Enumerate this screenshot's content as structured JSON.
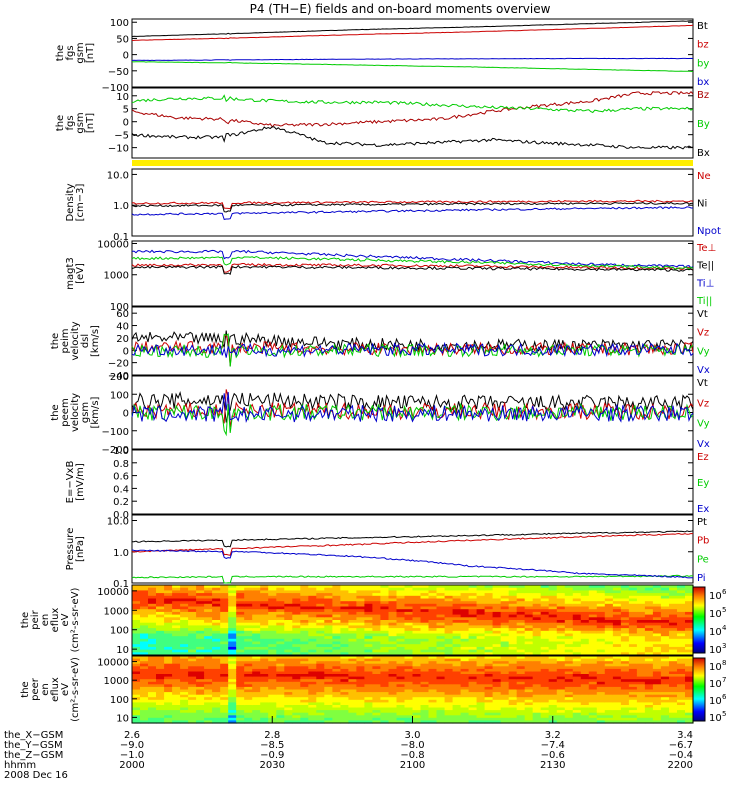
{
  "title": "P4 (TH−E) fields and on-board moments overview",
  "chart_data": {
    "type": "line",
    "title": "P4 (TH−E) fields and on-board moments overview",
    "panels": [
      {
        "id": "fgs-gsm-mag",
        "ylabel": [
          "the",
          "fgs",
          "gsm",
          "[nT]"
        ],
        "ylim": [
          -100,
          110
        ],
        "scale": "linear",
        "yticks": [
          100,
          50,
          0,
          -50,
          -100
        ],
        "yticklabels": [
          "100",
          "50",
          "0",
          "−50",
          "−100"
        ],
        "series": [
          {
            "name": "Bt",
            "color": "#000000",
            "x": [
              0,
              0.2,
              0.4,
              0.6,
              0.8,
              1
            ],
            "y": [
              56,
              66,
              77,
              85,
              95,
              104
            ]
          },
          {
            "name": "bz",
            "color": "#cc0000",
            "x": [
              0,
              0.2,
              0.4,
              0.6,
              0.8,
              1
            ],
            "y": [
              44,
              52,
              62,
              70,
              80,
              90
            ]
          },
          {
            "name": "by",
            "color": "#00cc00",
            "x": [
              0,
              0.2,
              0.4,
              0.6,
              0.8,
              1
            ],
            "y": [
              -22,
              -26,
              -32,
              -38,
              -45,
              -52
            ]
          },
          {
            "name": "bx",
            "color": "#0000cc",
            "x": [
              0,
              0.2,
              0.4,
              0.6,
              0.8,
              1
            ],
            "y": [
              -18,
              -16,
              -14,
              -13,
              -12,
              -12
            ]
          }
        ]
      },
      {
        "id": "fgs-gsm-comp",
        "ylabel": [
          "the",
          "fgs",
          "gsm",
          "[nT]"
        ],
        "ylim": [
          -14,
          13
        ],
        "scale": "linear",
        "yticks": [
          10,
          5,
          0,
          -5,
          -10
        ],
        "yticklabels": [
          "10",
          "5",
          "0",
          "−5",
          "−10"
        ],
        "series": [
          {
            "name": "Bz",
            "color": "#aa0000",
            "x": [
              0,
              0.08,
              0.16,
              0.25,
              0.34,
              0.44,
              0.55,
              0.64,
              0.72,
              0.82,
              0.9,
              1
            ],
            "y": [
              4,
              1.5,
              1,
              -1.5,
              -1,
              0,
              1,
              4,
              6,
              8,
              11,
              11
            ]
          },
          {
            "name": "By",
            "color": "#00cc00",
            "x": [
              0,
              0.08,
              0.16,
              0.25,
              0.34,
              0.44,
              0.55,
              0.64,
              0.72,
              0.82,
              0.9,
              1
            ],
            "y": [
              8,
              9,
              9,
              8,
              7.5,
              7.5,
              6.5,
              5.5,
              5,
              4,
              5,
              5
            ]
          },
          {
            "name": "Bx",
            "color": "#000000",
            "x": [
              0,
              0.08,
              0.16,
              0.25,
              0.3,
              0.34,
              0.44,
              0.55,
              0.64,
              0.72,
              0.82,
              0.9,
              1
            ],
            "y": [
              -5,
              -6,
              -6,
              -2,
              -5,
              -8,
              -9,
              -8,
              -7,
              -8,
              -9,
              -10,
              -10
            ]
          }
        ]
      },
      {
        "id": "density",
        "ylabel": [
          "Density",
          "[cm−3]"
        ],
        "ylim": [
          0.1,
          15
        ],
        "scale": "log",
        "yticks": [
          10,
          1,
          0.1
        ],
        "yticklabels": [
          "10.0",
          "1.0",
          "0.1"
        ],
        "series": [
          {
            "name": "Ne",
            "color": "#cc0000",
            "x": [
              0,
              0.2,
              0.4,
              0.6,
              0.8,
              1
            ],
            "y": [
              1.15,
              1.2,
              1.25,
              1.3,
              1.35,
              1.35
            ]
          },
          {
            "name": "Ni",
            "color": "#000000",
            "x": [
              0,
              0.2,
              0.4,
              0.6,
              0.8,
              1
            ],
            "y": [
              0.95,
              1.0,
              1.05,
              1.1,
              1.15,
              1.15
            ]
          },
          {
            "name": "Npot",
            "color": "#0000cc",
            "x": [
              0,
              0.2,
              0.4,
              0.6,
              0.8,
              1
            ],
            "y": [
              0.5,
              0.55,
              0.62,
              0.7,
              0.78,
              0.85
            ]
          }
        ]
      },
      {
        "id": "temperature",
        "ylabel": [
          "magt3",
          "[eV]"
        ],
        "ylim": [
          100,
          12000
        ],
        "scale": "log",
        "yticks": [
          10000,
          1000,
          100
        ],
        "yticklabels": [
          "10000",
          "1000",
          "100"
        ],
        "series": [
          {
            "name": "Te⊥",
            "color": "#cc0000",
            "x": [
              0,
              0.2,
              0.4,
              0.6,
              0.8,
              1
            ],
            "y": [
              2000,
              2100,
              2000,
              1900,
              1700,
              1600
            ]
          },
          {
            "name": "Te||",
            "color": "#000000",
            "x": [
              0,
              0.2,
              0.4,
              0.6,
              0.8,
              1
            ],
            "y": [
              1700,
              1800,
              1700,
              1600,
              1500,
              1400
            ]
          },
          {
            "name": "Ti⊥",
            "color": "#0000cc",
            "x": [
              0,
              0.2,
              0.4,
              0.6,
              0.8,
              1
            ],
            "y": [
              5500,
              5500,
              4000,
              3000,
              2200,
              1800
            ]
          },
          {
            "name": "Ti||",
            "color": "#00cc00",
            "x": [
              0,
              0.2,
              0.4,
              0.6,
              0.8,
              1
            ],
            "y": [
              3300,
              3600,
              3000,
              2500,
              2000,
              1600
            ]
          }
        ]
      },
      {
        "id": "velocity-dsl",
        "ylabel": [
          "the",
          "peim",
          "velocity",
          "dsl",
          "[km/s]"
        ],
        "ylim": [
          -40,
          70
        ],
        "scale": "linear",
        "yticks": [
          60,
          40,
          20,
          0,
          -20,
          -40
        ],
        "yticklabels": [
          "60",
          "40",
          "20",
          "0",
          "−20",
          "−40"
        ],
        "series": [
          {
            "name": "Vt",
            "color": "#000000",
            "x": [
              0,
              0.2,
              0.4,
              0.6,
              0.8,
              1
            ],
            "y": [
              20,
              18,
              10,
              8,
              8,
              8
            ]
          },
          {
            "name": "Vz",
            "color": "#cc0000",
            "x": [
              0,
              0.2,
              0.4,
              0.6,
              0.8,
              1
            ],
            "y": [
              5,
              4,
              2,
              2,
              2,
              2
            ]
          },
          {
            "name": "Vy",
            "color": "#00cc00",
            "x": [
              0,
              0.2,
              0.4,
              0.6,
              0.8,
              1
            ],
            "y": [
              0,
              -2,
              0,
              0,
              0,
              0
            ]
          },
          {
            "name": "Vx",
            "color": "#0000cc",
            "x": [
              0,
              0.2,
              0.4,
              0.6,
              0.8,
              1
            ],
            "y": [
              2,
              0,
              1,
              1,
              1,
              1
            ]
          }
        ]
      },
      {
        "id": "velocity-gsm",
        "ylabel": [
          "the",
          "peem",
          "velocity",
          "gsm",
          "[km/s]"
        ],
        "ylim": [
          -200,
          200
        ],
        "scale": "linear",
        "yticks": [
          200,
          100,
          0,
          -100,
          -200
        ],
        "yticklabels": [
          "200",
          "100",
          "0",
          "−100",
          "−200"
        ],
        "series": [
          {
            "name": "Vt",
            "color": "#000000",
            "x": [
              0,
              0.2,
              0.4,
              0.6,
              0.8,
              1
            ],
            "y": [
              60,
              70,
              55,
              50,
              50,
              50
            ]
          },
          {
            "name": "Vz",
            "color": "#cc0000",
            "x": [
              0,
              0.2,
              0.4,
              0.6,
              0.8,
              1
            ],
            "y": [
              10,
              10,
              8,
              8,
              8,
              8
            ]
          },
          {
            "name": "Vy",
            "color": "#00cc00",
            "x": [
              0,
              0.2,
              0.4,
              0.6,
              0.8,
              1
            ],
            "y": [
              0,
              0,
              0,
              0,
              0,
              0
            ]
          },
          {
            "name": "Vx",
            "color": "#0000cc",
            "x": [
              0,
              0.2,
              0.4,
              0.6,
              0.8,
              1
            ],
            "y": [
              -10,
              -10,
              -5,
              -5,
              -5,
              -5
            ]
          }
        ]
      },
      {
        "id": "efield",
        "ylabel": [
          "E=−VxB",
          "[mV/m]"
        ],
        "ylim": [
          0,
          1
        ],
        "scale": "linear",
        "yticks": [
          1.0,
          0.8,
          0.6,
          0.4,
          0.2,
          0.0
        ],
        "yticklabels": [
          "1.0",
          "0.8",
          "0.6",
          "0.4",
          "0.2",
          "0.0"
        ],
        "series": [
          {
            "name": "Ez",
            "color": "#cc0000",
            "x": [],
            "y": []
          },
          {
            "name": "Ey",
            "color": "#00cc00",
            "x": [],
            "y": []
          },
          {
            "name": "Ex",
            "color": "#0000cc",
            "x": [],
            "y": []
          }
        ]
      },
      {
        "id": "pressure",
        "ylabel": [
          "Pressure",
          "[nPa]"
        ],
        "ylim": [
          0.1,
          15
        ],
        "scale": "log",
        "yticks": [
          10,
          1,
          0.1
        ],
        "yticklabels": [
          "10.0",
          "1.0",
          "0.1"
        ],
        "series": [
          {
            "name": "Pt",
            "color": "#000000",
            "x": [
              0,
              0.2,
              0.4,
              0.6,
              0.8,
              1
            ],
            "y": [
              2.1,
              2.4,
              2.8,
              3.3,
              3.9,
              4.5
            ]
          },
          {
            "name": "Pb",
            "color": "#cc0000",
            "x": [
              0,
              0.2,
              0.4,
              0.6,
              0.8,
              1
            ],
            "y": [
              1.0,
              1.3,
              1.7,
              2.3,
              3.0,
              3.8
            ]
          },
          {
            "name": "Pe",
            "color": "#00cc00",
            "x": [
              0,
              0.2,
              0.4,
              0.6,
              0.8,
              1
            ],
            "y": [
              0.15,
              0.16,
              0.16,
              0.16,
              0.16,
              0.17
            ]
          },
          {
            "name": "Pi",
            "color": "#0000cc",
            "x": [
              0,
              0.2,
              0.4,
              0.6,
              0.8,
              1
            ],
            "y": [
              1.1,
              1.0,
              0.7,
              0.35,
              0.2,
              0.15
            ]
          }
        ]
      }
    ],
    "spectrograms": [
      {
        "id": "peir-eflux",
        "type": "heatmap",
        "ylabel": [
          "the",
          "peir",
          "en",
          "eflux",
          "eV",
          "(cm²-s-sr-eV)"
        ],
        "ylim": [
          5,
          20000
        ],
        "scale": "log",
        "yticks": [
          10000,
          1000,
          100,
          10
        ],
        "yticklabels": [
          "10000",
          "1000",
          "100",
          "10"
        ],
        "colorbar": {
          "ticks": [
            6,
            5,
            4,
            3
          ],
          "labels": [
            "10",
            "10",
            "10",
            "10"
          ],
          "exponents": [
            "6",
            "5",
            "4",
            "3"
          ]
        }
      },
      {
        "id": "peer-eflux",
        "type": "heatmap",
        "ylabel": [
          "the",
          "peer",
          "en",
          "eflux",
          "eV",
          "(cm²-s-sr-eV)"
        ],
        "ylim": [
          5,
          20000
        ],
        "scale": "log",
        "yticks": [
          10000,
          1000,
          100,
          10
        ],
        "yticklabels": [
          "10000",
          "1000",
          "100",
          "10"
        ],
        "colorbar": {
          "ticks": [
            8,
            7,
            6,
            5
          ],
          "labels": [
            "10",
            "10",
            "10",
            "10"
          ],
          "exponents": [
            "8",
            "7",
            "6",
            "5"
          ]
        }
      }
    ],
    "xaxis": {
      "rows": [
        {
          "label": "the_X−GSM",
          "values": [
            "2.6",
            "2.8",
            "3.0",
            "3.2",
            "3.4"
          ]
        },
        {
          "label": "the_Y−GSM",
          "values": [
            "−9.0",
            "−8.5",
            "−8.0",
            "−7.4",
            "−6.7"
          ]
        },
        {
          "label": "the_Z−GSM",
          "values": [
            "−1.0",
            "−0.9",
            "−0.8",
            "−0.6",
            "−0.4"
          ]
        },
        {
          "label": "hhmm",
          "values": [
            "2000",
            "2030",
            "2100",
            "2130",
            "2200"
          ]
        }
      ],
      "date": "2008 Dec 16"
    }
  }
}
